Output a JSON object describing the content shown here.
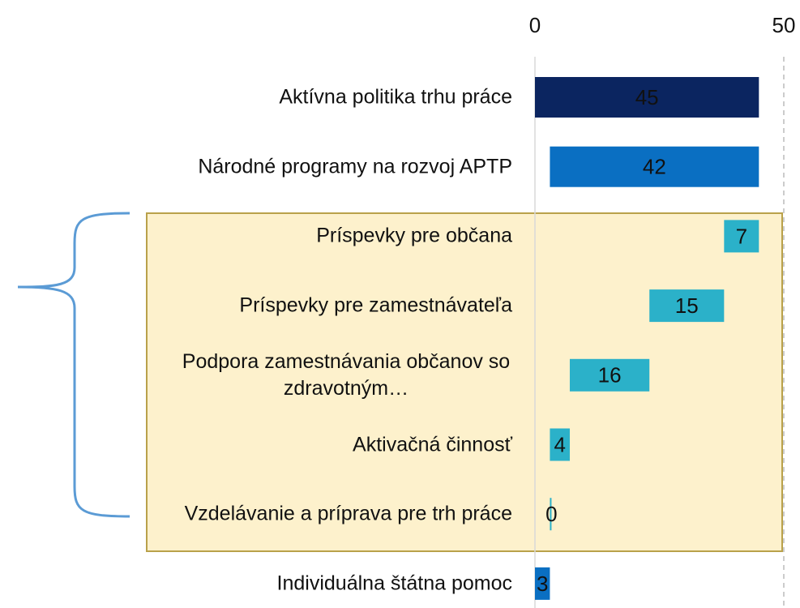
{
  "chart_data": {
    "type": "waterfall",
    "categories": [
      "Aktívna politika trhu práce",
      "Národné programy na rozvoj APTP",
      "Príspevky pre občana",
      "Príspevky pre zamestnávateľa",
      "Podpora zamestnávania občanov so zdravotným…",
      "Aktivačná činnosť",
      "Vzdelávanie a príprava pre trh práce",
      "Individuálna štátna pomoc"
    ],
    "values": [
      45,
      42,
      7,
      15,
      16,
      4,
      0,
      3
    ],
    "colors": [
      "#0b2560",
      "#0a6fc2",
      "#2bb1c9",
      "#2bb1c9",
      "#2bb1c9",
      "#2bb1c9",
      "#2bb1c9",
      "#0a6fc2"
    ],
    "group": {
      "parent": 1,
      "members": [
        2,
        3,
        4,
        5,
        6
      ]
    },
    "xlim": [
      0,
      50
    ],
    "xticks": [
      0,
      50
    ]
  }
}
